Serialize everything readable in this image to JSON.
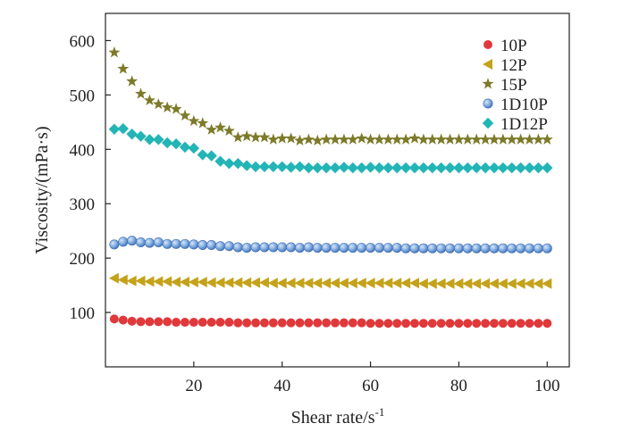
{
  "chart_data": {
    "type": "scatter",
    "title": "",
    "xlabel": "Shear rate/s",
    "xlabel_sup": "-1",
    "ylabel": "Viscosity/(mPa·s)",
    "xlim": [
      0,
      105
    ],
    "ylim": [
      0,
      650
    ],
    "xticks": [
      20,
      40,
      60,
      80,
      100
    ],
    "yticks": [
      100,
      200,
      300,
      400,
      500,
      600
    ],
    "grid": false,
    "legend_position": "top-right",
    "series": [
      {
        "name": "10P",
        "marker": "circle",
        "color": "#e0393b",
        "points": [
          [
            2,
            88
          ],
          [
            4,
            86
          ],
          [
            6,
            84
          ],
          [
            8,
            83
          ],
          [
            10,
            83
          ],
          [
            12,
            83
          ],
          [
            14,
            83
          ],
          [
            16,
            82
          ],
          [
            18,
            82
          ],
          [
            20,
            82
          ],
          [
            22,
            82
          ],
          [
            24,
            82
          ],
          [
            26,
            82
          ],
          [
            28,
            82
          ],
          [
            30,
            81
          ],
          [
            32,
            81
          ],
          [
            34,
            81
          ],
          [
            36,
            81
          ],
          [
            38,
            81
          ],
          [
            40,
            81
          ],
          [
            42,
            81
          ],
          [
            44,
            81
          ],
          [
            46,
            81
          ],
          [
            48,
            81
          ],
          [
            50,
            81
          ],
          [
            52,
            81
          ],
          [
            54,
            81
          ],
          [
            56,
            81
          ],
          [
            58,
            81
          ],
          [
            60,
            80
          ],
          [
            62,
            80
          ],
          [
            64,
            80
          ],
          [
            66,
            80
          ],
          [
            68,
            80
          ],
          [
            70,
            80
          ],
          [
            72,
            80
          ],
          [
            74,
            80
          ],
          [
            76,
            80
          ],
          [
            78,
            80
          ],
          [
            80,
            80
          ],
          [
            82,
            80
          ],
          [
            84,
            80
          ],
          [
            86,
            80
          ],
          [
            88,
            80
          ],
          [
            90,
            80
          ],
          [
            92,
            80
          ],
          [
            94,
            80
          ],
          [
            96,
            80
          ],
          [
            98,
            80
          ],
          [
            100,
            80
          ]
        ]
      },
      {
        "name": "12P",
        "marker": "triangle-left",
        "color": "#c4a21a",
        "points": [
          [
            2,
            163
          ],
          [
            4,
            160
          ],
          [
            6,
            158
          ],
          [
            8,
            158
          ],
          [
            10,
            157
          ],
          [
            12,
            157
          ],
          [
            14,
            157
          ],
          [
            16,
            156
          ],
          [
            18,
            156
          ],
          [
            20,
            156
          ],
          [
            22,
            156
          ],
          [
            24,
            155
          ],
          [
            26,
            155
          ],
          [
            28,
            155
          ],
          [
            30,
            155
          ],
          [
            32,
            155
          ],
          [
            34,
            155
          ],
          [
            36,
            155
          ],
          [
            38,
            154
          ],
          [
            40,
            154
          ],
          [
            42,
            154
          ],
          [
            44,
            154
          ],
          [
            46,
            154
          ],
          [
            48,
            154
          ],
          [
            50,
            154
          ],
          [
            52,
            154
          ],
          [
            54,
            154
          ],
          [
            56,
            154
          ],
          [
            58,
            154
          ],
          [
            60,
            154
          ],
          [
            62,
            154
          ],
          [
            64,
            154
          ],
          [
            66,
            154
          ],
          [
            68,
            154
          ],
          [
            70,
            154
          ],
          [
            72,
            153
          ],
          [
            74,
            153
          ],
          [
            76,
            153
          ],
          [
            78,
            153
          ],
          [
            80,
            153
          ],
          [
            82,
            153
          ],
          [
            84,
            153
          ],
          [
            86,
            153
          ],
          [
            88,
            153
          ],
          [
            90,
            153
          ],
          [
            92,
            153
          ],
          [
            94,
            153
          ],
          [
            96,
            153
          ],
          [
            98,
            153
          ],
          [
            100,
            153
          ]
        ]
      },
      {
        "name": "15P",
        "marker": "star",
        "color": "#7d7a29",
        "points": [
          [
            2,
            578
          ],
          [
            4,
            548
          ],
          [
            6,
            525
          ],
          [
            8,
            502
          ],
          [
            10,
            490
          ],
          [
            12,
            483
          ],
          [
            14,
            477
          ],
          [
            16,
            474
          ],
          [
            18,
            462
          ],
          [
            20,
            452
          ],
          [
            22,
            448
          ],
          [
            24,
            436
          ],
          [
            26,
            440
          ],
          [
            28,
            434
          ],
          [
            30,
            422
          ],
          [
            32,
            424
          ],
          [
            34,
            422
          ],
          [
            36,
            422
          ],
          [
            38,
            418
          ],
          [
            40,
            420
          ],
          [
            42,
            420
          ],
          [
            44,
            416
          ],
          [
            46,
            418
          ],
          [
            48,
            416
          ],
          [
            50,
            418
          ],
          [
            52,
            418
          ],
          [
            54,
            418
          ],
          [
            56,
            418
          ],
          [
            58,
            420
          ],
          [
            60,
            418
          ],
          [
            62,
            418
          ],
          [
            64,
            418
          ],
          [
            66,
            418
          ],
          [
            68,
            418
          ],
          [
            70,
            420
          ],
          [
            72,
            418
          ],
          [
            74,
            418
          ],
          [
            76,
            418
          ],
          [
            78,
            418
          ],
          [
            80,
            418
          ],
          [
            82,
            418
          ],
          [
            84,
            418
          ],
          [
            86,
            418
          ],
          [
            88,
            418
          ],
          [
            90,
            418
          ],
          [
            92,
            418
          ],
          [
            94,
            418
          ],
          [
            96,
            418
          ],
          [
            98,
            418
          ],
          [
            100,
            418
          ]
        ]
      },
      {
        "name": "1D10P",
        "marker": "circle-shaded",
        "color": "#5a8fcf",
        "points": [
          [
            2,
            225
          ],
          [
            4,
            230
          ],
          [
            6,
            232
          ],
          [
            8,
            229
          ],
          [
            10,
            228
          ],
          [
            12,
            229
          ],
          [
            14,
            226
          ],
          [
            16,
            226
          ],
          [
            18,
            226
          ],
          [
            20,
            225
          ],
          [
            22,
            224
          ],
          [
            24,
            224
          ],
          [
            26,
            222
          ],
          [
            28,
            222
          ],
          [
            30,
            220
          ],
          [
            32,
            219
          ],
          [
            34,
            220
          ],
          [
            36,
            220
          ],
          [
            38,
            220
          ],
          [
            40,
            220
          ],
          [
            42,
            220
          ],
          [
            44,
            219
          ],
          [
            46,
            220
          ],
          [
            48,
            219
          ],
          [
            50,
            219
          ],
          [
            52,
            219
          ],
          [
            54,
            219
          ],
          [
            56,
            219
          ],
          [
            58,
            219
          ],
          [
            60,
            219
          ],
          [
            62,
            219
          ],
          [
            64,
            219
          ],
          [
            66,
            219
          ],
          [
            68,
            218
          ],
          [
            70,
            218
          ],
          [
            72,
            218
          ],
          [
            74,
            218
          ],
          [
            76,
            218
          ],
          [
            78,
            218
          ],
          [
            80,
            218
          ],
          [
            82,
            218
          ],
          [
            84,
            218
          ],
          [
            86,
            218
          ],
          [
            88,
            218
          ],
          [
            90,
            218
          ],
          [
            92,
            218
          ],
          [
            94,
            218
          ],
          [
            96,
            218
          ],
          [
            98,
            218
          ],
          [
            100,
            218
          ]
        ]
      },
      {
        "name": "1D12P",
        "marker": "diamond",
        "color": "#23b5b5",
        "points": [
          [
            2,
            437
          ],
          [
            4,
            438
          ],
          [
            6,
            428
          ],
          [
            8,
            424
          ],
          [
            10,
            418
          ],
          [
            12,
            418
          ],
          [
            14,
            412
          ],
          [
            16,
            410
          ],
          [
            18,
            404
          ],
          [
            20,
            402
          ],
          [
            22,
            390
          ],
          [
            24,
            388
          ],
          [
            26,
            378
          ],
          [
            28,
            374
          ],
          [
            30,
            374
          ],
          [
            32,
            370
          ],
          [
            34,
            368
          ],
          [
            36,
            368
          ],
          [
            38,
            368
          ],
          [
            40,
            368
          ],
          [
            42,
            367
          ],
          [
            44,
            368
          ],
          [
            46,
            366
          ],
          [
            48,
            366
          ],
          [
            50,
            366
          ],
          [
            52,
            366
          ],
          [
            54,
            367
          ],
          [
            56,
            366
          ],
          [
            58,
            366
          ],
          [
            60,
            367
          ],
          [
            62,
            366
          ],
          [
            64,
            366
          ],
          [
            66,
            366
          ],
          [
            68,
            366
          ],
          [
            70,
            366
          ],
          [
            72,
            366
          ],
          [
            74,
            366
          ],
          [
            76,
            366
          ],
          [
            78,
            366
          ],
          [
            80,
            366
          ],
          [
            82,
            366
          ],
          [
            84,
            366
          ],
          [
            86,
            366
          ],
          [
            88,
            366
          ],
          [
            90,
            366
          ],
          [
            92,
            366
          ],
          [
            94,
            366
          ],
          [
            96,
            366
          ],
          [
            98,
            366
          ],
          [
            100,
            366
          ]
        ]
      }
    ]
  }
}
